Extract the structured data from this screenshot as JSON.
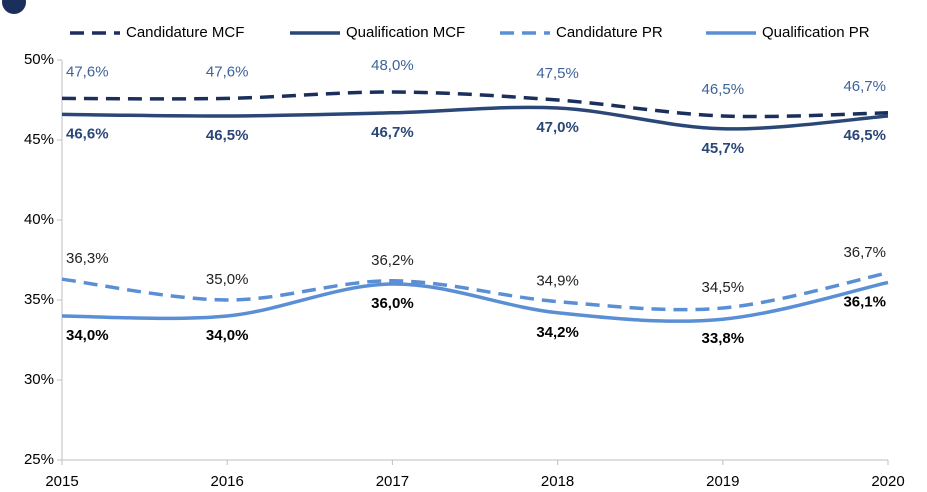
{
  "chart_data": {
    "type": "line",
    "x": [
      2015,
      2016,
      2017,
      2018,
      2019,
      2020
    ],
    "xlim": [
      2015,
      2020
    ],
    "xticks": [
      2015,
      2016,
      2017,
      2018,
      2019,
      2020
    ],
    "ylim": [
      25,
      50
    ],
    "yticks": [
      {
        "value": 25,
        "label": "25%"
      },
      {
        "value": 30,
        "label": "30%"
      },
      {
        "value": 35,
        "label": "35%"
      },
      {
        "value": 40,
        "label": "40%"
      },
      {
        "value": 45,
        "label": "45%"
      },
      {
        "value": 50,
        "label": "50%"
      }
    ],
    "grid": false,
    "legend": "top",
    "series": [
      {
        "name": "Candidature MCF",
        "color": "#1b2f5c",
        "dashed": true,
        "values": [
          47.6,
          47.6,
          48.0,
          47.5,
          46.5,
          46.7
        ],
        "value_labels": [
          "47,6%",
          "47,6%",
          "48,0%",
          "47,5%",
          "46,5%",
          "46,7%"
        ]
      },
      {
        "name": "Qualification MCF",
        "color": "#2a4778",
        "dashed": false,
        "values": [
          46.6,
          46.5,
          46.7,
          47.0,
          45.7,
          46.5
        ],
        "value_labels": [
          "46,6%",
          "46,5%",
          "46,7%",
          "47,0%",
          "45,7%",
          "46,5%"
        ]
      },
      {
        "name": "Candidature PR",
        "color": "#5a8fd6",
        "dashed": true,
        "values": [
          36.3,
          35.0,
          36.2,
          34.9,
          34.5,
          36.7
        ],
        "value_labels": [
          "36,3%",
          "35,0%",
          "36,2%",
          "34,9%",
          "34,5%",
          "36,7%"
        ]
      },
      {
        "name": "Qualification PR",
        "color": "#5a8fd6",
        "dashed": false,
        "values": [
          34.0,
          34.0,
          36.0,
          34.2,
          33.8,
          36.1
        ],
        "value_labels": [
          "34,0%",
          "34,0%",
          "36,0%",
          "34,2%",
          "33,8%",
          "36,1%"
        ]
      }
    ]
  }
}
